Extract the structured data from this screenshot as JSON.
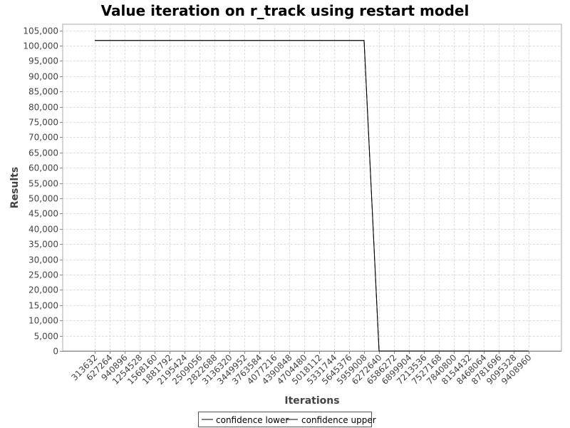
{
  "chart_data": {
    "type": "line",
    "title": "Value iteration on r_track using restart model",
    "xlabel": "Iterations",
    "ylabel": "Results",
    "categories": [
      "313632",
      "627264",
      "940896",
      "1254528",
      "1568160",
      "1881792",
      "2195424",
      "2509056",
      "2822688",
      "3136320",
      "3449952",
      "3763584",
      "4077216",
      "4390848",
      "4704480",
      "5018112",
      "5331744",
      "5645376",
      "5959008",
      "6272640",
      "6586272",
      "6899904",
      "7213536",
      "7527168",
      "7840800",
      "8154432",
      "8468064",
      "8781696",
      "9095328",
      "9408960"
    ],
    "series": [
      {
        "name": "confidence lower",
        "color": "#000000",
        "values": [
          101700,
          101700,
          101700,
          101700,
          101700,
          101700,
          101700,
          101700,
          101700,
          101700,
          101700,
          101700,
          101700,
          101700,
          101700,
          101700,
          101700,
          101700,
          101700,
          0,
          0,
          0,
          0,
          0,
          0,
          0,
          0,
          0,
          0,
          0
        ]
      },
      {
        "name": "confidence upper",
        "color": "#000000",
        "values": [
          101700,
          101700,
          101700,
          101700,
          101700,
          101700,
          101700,
          101700,
          101700,
          101700,
          101700,
          101700,
          101700,
          101700,
          101700,
          101700,
          101700,
          101700,
          101700,
          0,
          0,
          0,
          0,
          0,
          0,
          0,
          0,
          0,
          0,
          0
        ]
      }
    ],
    "yticks": [
      "0",
      "5,000",
      "10,000",
      "15,000",
      "20,000",
      "25,000",
      "30,000",
      "35,000",
      "40,000",
      "45,000",
      "50,000",
      "55,000",
      "60,000",
      "65,000",
      "70,000",
      "75,000",
      "80,000",
      "85,000",
      "90,000",
      "95,000",
      "100,000",
      "105,000"
    ],
    "ylim": [
      0,
      107000
    ],
    "grid": true,
    "legend_position": "bottom"
  }
}
